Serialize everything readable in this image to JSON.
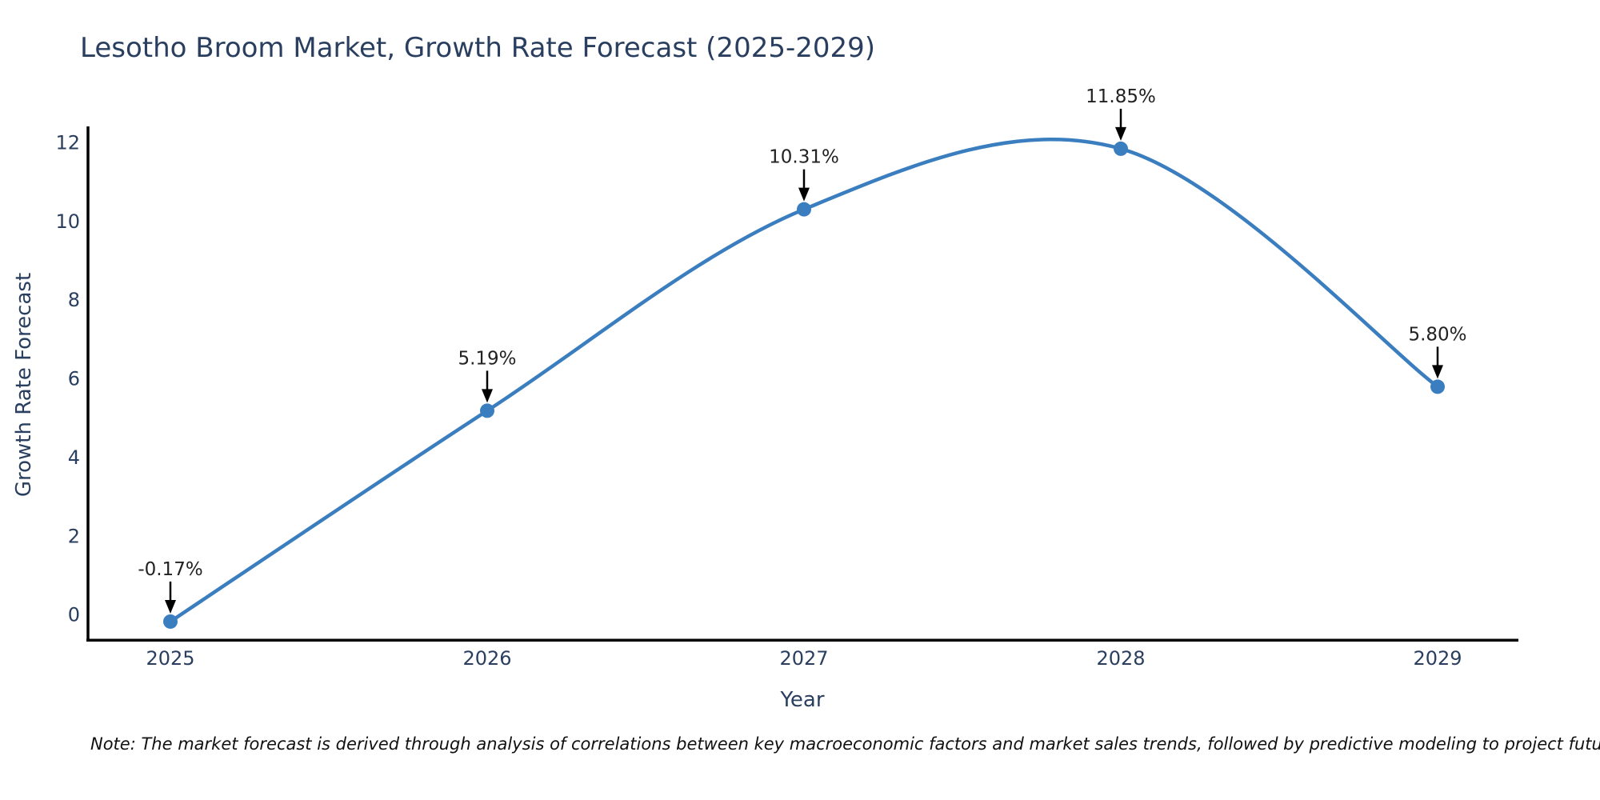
{
  "title": "Lesotho Broom Market, Growth Rate Forecast (2025-2029)",
  "footnote": "Note: The market forecast is derived through analysis of correlations between key macroeconomic factors and market sales trends, followed by predictive modeling to project future sales",
  "chart_data": {
    "type": "line",
    "title": "Lesotho Broom Market, Growth Rate Forecast (2025-2029)",
    "xlabel": "Year",
    "ylabel": "Growth Rate Forecast",
    "categories": [
      "2025",
      "2026",
      "2027",
      "2028",
      "2029"
    ],
    "series": [
      {
        "name": "Growth Rate Forecast",
        "values": [
          -0.17,
          5.19,
          10.31,
          11.85,
          5.8
        ],
        "point_labels": [
          "-0.17%",
          "5.19%",
          "10.31%",
          "11.85%",
          "5.80%"
        ]
      }
    ],
    "yticks": [
      0,
      2,
      4,
      6,
      8,
      10,
      12
    ],
    "ylim": [
      -0.64,
      12.42
    ],
    "line_shape": "spline",
    "grid": false,
    "legend_position": "none",
    "colors": {
      "line": "#3a7ebf",
      "marker": "#3a7ebf",
      "axis_line": "#000000",
      "tick_font": "#2a3f5f",
      "annotation_font": "#222222",
      "annotation_arrow": "#000000",
      "background": "#ffffff"
    }
  }
}
